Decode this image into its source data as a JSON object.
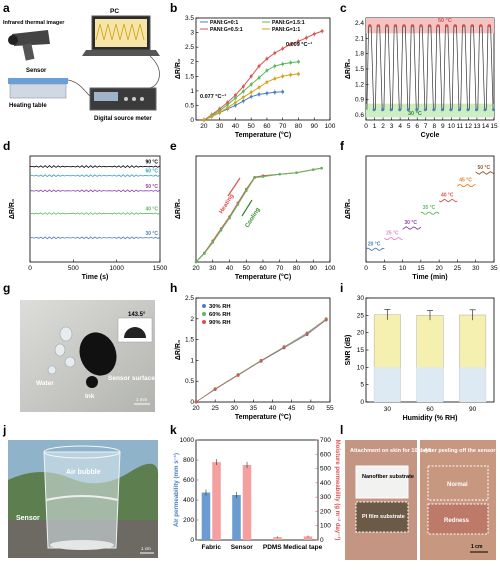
{
  "panel_labels": {
    "a": "a",
    "b": "b",
    "c": "c",
    "d": "d",
    "e": "e",
    "f": "f",
    "g": "g",
    "h": "h",
    "i": "i",
    "j": "j",
    "k": "k",
    "l": "l"
  },
  "panel_a": {
    "pc": "PC",
    "imager": "Infrared thermal imager",
    "sensor": "Sensor",
    "heating_table": "Heating table",
    "meter": "Digital source meter"
  },
  "panel_g": {
    "angle": "143.5°",
    "water": "Water",
    "ink": "Ink",
    "surface": "Sensor surface",
    "scale": "1 mm"
  },
  "panel_j": {
    "bubble": "Air bubble",
    "sensor": "Sensor",
    "scale": "1 cm"
  },
  "panel_l": {
    "left_title": "Attachment on skin for 10 days",
    "right_title": "After peeling off the sensor",
    "nanofiber": "Nanofiber substrate",
    "pi": "PI film substrate",
    "normal": "Normal",
    "redness": "Redness",
    "scale": "1 cm"
  },
  "colors": {
    "red": "#d9534f",
    "green": "#5cb85c",
    "blue": "#4a7fc1",
    "yellow": "#d4a017",
    "purple": "#8e44ad",
    "orange": "#e67e22"
  },
  "chart_data": [
    {
      "id": "b",
      "type": "line",
      "xlabel": "Temperature (°C)",
      "ylabel": "ΔR/R₀",
      "xlim": [
        15,
        100
      ],
      "ylim": [
        0,
        3.5
      ],
      "xticks": [
        20,
        30,
        40,
        50,
        60,
        70,
        80,
        90,
        100
      ],
      "yticks": [
        0,
        0.5,
        1.0,
        1.5,
        2.0,
        2.5,
        3.0,
        3.5
      ],
      "annotations": [
        "0.077 °C⁻¹",
        "0.009 °C⁻¹"
      ],
      "series": [
        {
          "name": "PANI:G=0:1",
          "color": "#4a7fc1",
          "x": [
            20,
            25,
            30,
            35,
            40,
            45,
            50,
            55,
            60,
            65,
            70
          ],
          "y": [
            0,
            0.12,
            0.25,
            0.38,
            0.5,
            0.65,
            0.8,
            0.88,
            0.92,
            0.95,
            0.97
          ]
        },
        {
          "name": "PANI:G=0.5:1",
          "color": "#d9534f",
          "x": [
            20,
            25,
            30,
            35,
            40,
            45,
            50,
            55,
            60,
            65,
            70,
            75,
            80,
            85,
            90,
            95
          ],
          "y": [
            0,
            0.18,
            0.38,
            0.6,
            0.85,
            1.15,
            1.5,
            1.85,
            2.1,
            2.3,
            2.45,
            2.6,
            2.7,
            2.82,
            2.95,
            3.05
          ]
        },
        {
          "name": "PANI:G=1.5:1",
          "color": "#5cb85c",
          "x": [
            20,
            25,
            30,
            35,
            40,
            45,
            50,
            55,
            60,
            65,
            70,
            75,
            80
          ],
          "y": [
            0,
            0.15,
            0.32,
            0.52,
            0.75,
            0.98,
            1.22,
            1.45,
            1.7,
            1.85,
            1.92,
            1.97,
            2.0
          ]
        },
        {
          "name": "PANI:G=1:1",
          "color": "#d4a017",
          "x": [
            20,
            25,
            30,
            35,
            40,
            45,
            50,
            55,
            60,
            65,
            70,
            75,
            80
          ],
          "y": [
            0,
            0.12,
            0.26,
            0.42,
            0.6,
            0.78,
            0.95,
            1.12,
            1.3,
            1.42,
            1.5,
            1.55,
            1.58
          ]
        }
      ]
    },
    {
      "id": "c",
      "type": "line",
      "xlabel": "Cycle",
      "ylabel": "ΔR/R₀",
      "xlim": [
        0,
        15
      ],
      "ylim": [
        0.5,
        2.5
      ],
      "xticks": [
        0,
        1,
        2,
        3,
        4,
        5,
        6,
        7,
        8,
        9,
        10,
        11,
        12,
        13,
        14,
        15
      ],
      "yticks": [
        0.6,
        0.9,
        1.2,
        1.5,
        1.8,
        2.1,
        2.4
      ],
      "bands": [
        "50 °C",
        "30 °C"
      ],
      "high": 2.35,
      "low": 0.7
    },
    {
      "id": "d",
      "type": "line",
      "xlabel": "Time (s)",
      "ylabel": "ΔR/R₀",
      "xlim": [
        0,
        1500
      ],
      "ylim": [
        0,
        3.5
      ],
      "xticks": [
        0,
        500,
        1000,
        1500
      ],
      "series": [
        {
          "name": "90 °C",
          "color": "#000000",
          "y": 3.15
        },
        {
          "name": "60 °C",
          "color": "#3aa0c8",
          "y": 2.85
        },
        {
          "name": "50 °C",
          "color": "#8e44ad",
          "y": 2.35
        },
        {
          "name": "40 °C",
          "color": "#5cb85c",
          "y": 1.6
        },
        {
          "name": "30 °C",
          "color": "#4a7fc1",
          "y": 0.8
        }
      ]
    },
    {
      "id": "e",
      "type": "line",
      "xlabel": "Temperature (°C)",
      "ylabel": "ΔR/R₀",
      "xlim": [
        20,
        100
      ],
      "ylim": [
        0,
        3.5
      ],
      "xticks": [
        20,
        30,
        40,
        50,
        60,
        70,
        80,
        90,
        100
      ],
      "labels": [
        "Heating",
        "Cooling"
      ],
      "series": [
        {
          "name": "Heating",
          "color": "#d9534f",
          "x": [
            20,
            25,
            30,
            35,
            40,
            45,
            50,
            55,
            60,
            70,
            80,
            90,
            95
          ],
          "y": [
            0,
            0.3,
            0.7,
            1.1,
            1.5,
            1.95,
            2.4,
            2.8,
            2.85,
            2.9,
            2.95,
            3.05,
            3.1
          ]
        },
        {
          "name": "Cooling",
          "color": "#5cb85c",
          "x": [
            95,
            90,
            80,
            70,
            60,
            55,
            50,
            45,
            40,
            35,
            30,
            25,
            20
          ],
          "y": [
            3.1,
            3.05,
            2.95,
            2.9,
            2.82,
            2.78,
            2.35,
            1.9,
            1.45,
            1.05,
            0.65,
            0.28,
            0
          ]
        }
      ]
    },
    {
      "id": "f",
      "type": "line",
      "xlabel": "Time (min)",
      "ylabel": "ΔR/R₀",
      "xlim": [
        0,
        35
      ],
      "ylim": [
        0,
        2.5
      ],
      "xticks": [
        0,
        5,
        10,
        15,
        20,
        25,
        30,
        35
      ],
      "steps": [
        {
          "label": "20 °C",
          "x0": 0,
          "x1": 5,
          "y": 0.3,
          "color": "#4a7fc1"
        },
        {
          "label": "25 °C",
          "x0": 5,
          "x1": 10,
          "y": 0.55,
          "color": "#e08ac9"
        },
        {
          "label": "30 °C",
          "x0": 10,
          "x1": 15,
          "y": 0.8,
          "color": "#8e44ad"
        },
        {
          "label": "35 °C",
          "x0": 15,
          "x1": 20,
          "y": 1.15,
          "color": "#5cb85c"
        },
        {
          "label": "40 °C",
          "x0": 20,
          "x1": 25,
          "y": 1.45,
          "color": "#d9534f"
        },
        {
          "label": "45 °C",
          "x0": 25,
          "x1": 30,
          "y": 1.8,
          "color": "#e67e22"
        },
        {
          "label": "50 °C",
          "x0": 30,
          "x1": 35,
          "y": 2.1,
          "color": "#8b5a2b"
        }
      ]
    },
    {
      "id": "h",
      "type": "scatter",
      "xlabel": "Temperature (°C)",
      "ylabel": "ΔR/R₀",
      "xlim": [
        20,
        55
      ],
      "ylim": [
        0,
        2.5
      ],
      "xticks": [
        20,
        25,
        30,
        35,
        40,
        45,
        50,
        55
      ],
      "yticks": [
        0,
        0.5,
        1.0,
        1.5,
        2.0,
        2.5
      ],
      "x": [
        20,
        25,
        31,
        37,
        43,
        49,
        54
      ],
      "series": [
        {
          "name": "30% RH",
          "color": "#4a7fc1",
          "y": [
            0,
            0.3,
            0.65,
            0.98,
            1.3,
            1.62,
            1.97
          ]
        },
        {
          "name": "60% RH",
          "color": "#5cb85c",
          "y": [
            0,
            0.32,
            0.66,
            1.0,
            1.33,
            1.66,
            2.0
          ]
        },
        {
          "name": "90% RH",
          "color": "#d9534f",
          "y": [
            0,
            0.31,
            0.64,
            0.99,
            1.31,
            1.64,
            1.98
          ]
        }
      ]
    },
    {
      "id": "i",
      "type": "bar",
      "xlabel": "Humidity (% RH)",
      "ylabel": "SNR (dB)",
      "categories": [
        "30",
        "60",
        "90"
      ],
      "values": [
        25.2,
        25.0,
        25.1
      ],
      "errors": [
        1.5,
        1.4,
        1.5
      ],
      "ylim": [
        0,
        30
      ],
      "yticks": [
        0,
        5,
        10,
        15,
        20,
        25,
        30
      ]
    },
    {
      "id": "k",
      "type": "bar",
      "ylabel": "Air permeability (mm s⁻¹)",
      "y2label": "Moisture permeability (g m⁻² day⁻¹)",
      "categories": [
        "Fabric",
        "Sensor",
        "PDMS",
        "Medical tape"
      ],
      "ylim": [
        0,
        1000
      ],
      "y2lim": [
        0,
        700
      ],
      "yticks": [
        0,
        200,
        400,
        600,
        800,
        1000
      ],
      "y2ticks": [
        0,
        100,
        200,
        300,
        400,
        500,
        600,
        700
      ],
      "series": [
        {
          "name": "Air permeability",
          "color": "#6a9bd1",
          "values": [
            475,
            450,
            0,
            0
          ],
          "errors": [
            30,
            30,
            0,
            0
          ]
        },
        {
          "name": "Moisture permeability",
          "color": "#f4a0a0",
          "values": [
            545,
            525,
            20,
            25
          ],
          "errors": [
            20,
            22,
            5,
            6
          ]
        }
      ]
    }
  ]
}
